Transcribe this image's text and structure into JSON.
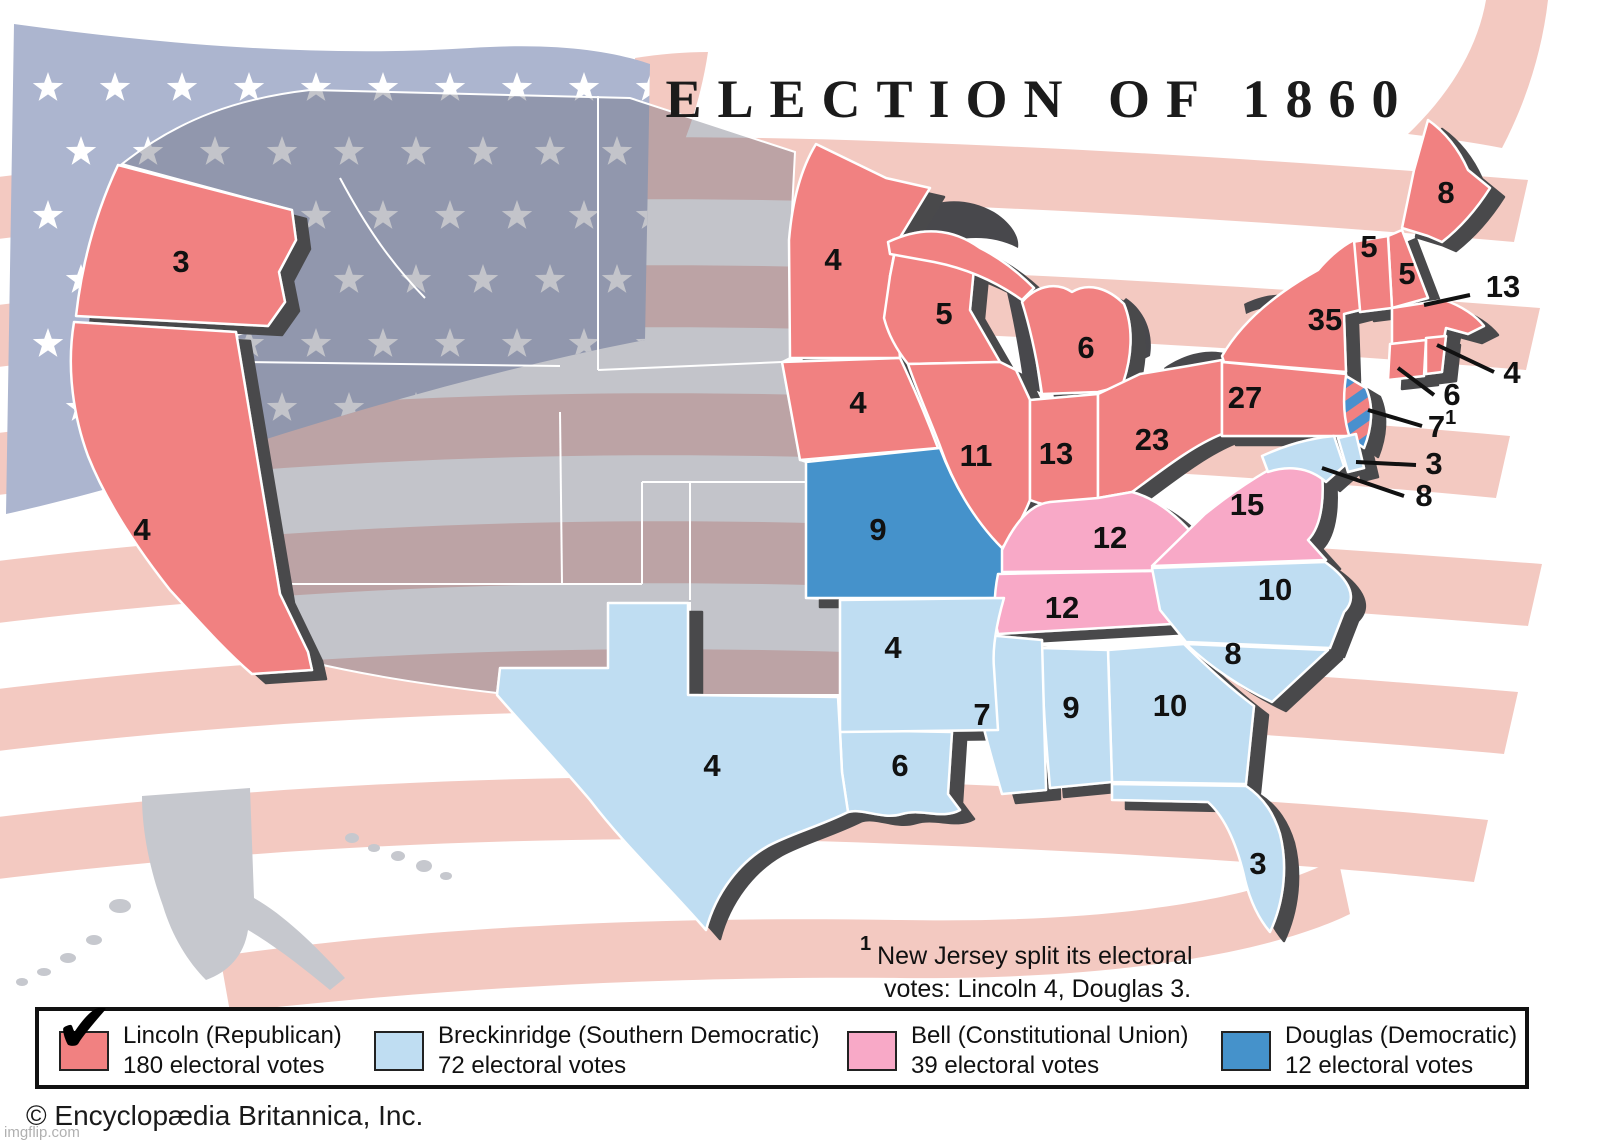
{
  "title": "ELECTION OF 1860",
  "footnote": {
    "marker": "1",
    "line1": "New Jersey split its electoral",
    "line2": "votes: Lincoln 4, Douglas 3."
  },
  "copyright": "© Encyclopædia Britannica, Inc.",
  "watermark": "imgflip.com",
  "colors": {
    "lincoln": "#F18181",
    "breckinridge": "#BFDDF2",
    "bell": "#F8A9C7",
    "douglas": "#4592CB",
    "split_stripe_red": "#F18181",
    "split_stripe_blue": "#4A90CE",
    "flag_stripe": "#F3C9C1",
    "flag_canton": "#ACB5CF",
    "flag_star": "#FFFFFF",
    "territory_overlay": "rgba(105,108,122,0.40)",
    "coast_shadow": "#48484C",
    "alaska_gray": "#C6C8CE",
    "state_border": "#FFFFFF"
  },
  "legend": [
    {
      "candidate": "Lincoln (Republican)",
      "votes": "180 electoral votes",
      "color": "#F18181",
      "checked": true
    },
    {
      "candidate": "Breckinridge (Southern Democratic)",
      "votes": "72 electoral votes",
      "color": "#BFDDF2",
      "checked": false
    },
    {
      "candidate": "Bell (Constitutional Union)",
      "votes": "39 electoral votes",
      "color": "#F8A9C7",
      "checked": false
    },
    {
      "candidate": "Douglas (Democratic)",
      "votes": "12 electoral votes",
      "color": "#4592CB",
      "checked": false
    }
  ],
  "states": [
    {
      "id": "OR",
      "name": "Oregon",
      "party": "lincoln",
      "votes": "3"
    },
    {
      "id": "CA",
      "name": "California",
      "party": "lincoln",
      "votes": "4"
    },
    {
      "id": "MN",
      "name": "Minnesota",
      "party": "lincoln",
      "votes": "4"
    },
    {
      "id": "WI",
      "name": "Wisconsin",
      "party": "lincoln",
      "votes": "5"
    },
    {
      "id": "MI",
      "name": "Michigan",
      "party": "lincoln",
      "votes": "6"
    },
    {
      "id": "IA",
      "name": "Iowa",
      "party": "lincoln",
      "votes": "4"
    },
    {
      "id": "IL",
      "name": "Illinois",
      "party": "lincoln",
      "votes": "11"
    },
    {
      "id": "IN",
      "name": "Indiana",
      "party": "lincoln",
      "votes": "13"
    },
    {
      "id": "OH",
      "name": "Ohio",
      "party": "lincoln",
      "votes": "23"
    },
    {
      "id": "ME",
      "name": "Maine",
      "party": "lincoln",
      "votes": "8"
    },
    {
      "id": "NH",
      "name": "New Hampshire",
      "party": "lincoln",
      "votes": "5"
    },
    {
      "id": "VT",
      "name": "Vermont",
      "party": "lincoln",
      "votes": "5"
    },
    {
      "id": "NY",
      "name": "New York",
      "party": "lincoln",
      "votes": "35"
    },
    {
      "id": "PA",
      "name": "Pennsylvania",
      "party": "lincoln",
      "votes": "27"
    },
    {
      "id": "MA",
      "name": "Massachusetts",
      "party": "lincoln",
      "votes": "13"
    },
    {
      "id": "RI",
      "name": "Rhode Island",
      "party": "lincoln",
      "votes": "4"
    },
    {
      "id": "CT",
      "name": "Connecticut",
      "party": "lincoln",
      "votes": "6"
    },
    {
      "id": "NJ",
      "name": "New Jersey",
      "party": "split",
      "votes": "7",
      "votes_sup": "1"
    },
    {
      "id": "MO",
      "name": "Missouri",
      "party": "douglas",
      "votes": "9"
    },
    {
      "id": "KY",
      "name": "Kentucky",
      "party": "bell",
      "votes": "12"
    },
    {
      "id": "TN",
      "name": "Tennessee",
      "party": "bell",
      "votes": "12"
    },
    {
      "id": "VA",
      "name": "Virginia",
      "party": "bell",
      "votes": "15"
    },
    {
      "id": "MD",
      "name": "Maryland",
      "party": "breckinridge",
      "votes": "8"
    },
    {
      "id": "DE",
      "name": "Delaware",
      "party": "breckinridge",
      "votes": "3"
    },
    {
      "id": "NC",
      "name": "North Carolina",
      "party": "breckinridge",
      "votes": "10"
    },
    {
      "id": "SC",
      "name": "South Carolina",
      "party": "breckinridge",
      "votes": "8"
    },
    {
      "id": "GA",
      "name": "Georgia",
      "party": "breckinridge",
      "votes": "10"
    },
    {
      "id": "AL",
      "name": "Alabama",
      "party": "breckinridge",
      "votes": "9"
    },
    {
      "id": "MS",
      "name": "Mississippi",
      "party": "breckinridge",
      "votes": "7"
    },
    {
      "id": "FL",
      "name": "Florida",
      "party": "breckinridge",
      "votes": "3"
    },
    {
      "id": "LA",
      "name": "Louisiana",
      "party": "breckinridge",
      "votes": "6"
    },
    {
      "id": "AR",
      "name": "Arkansas",
      "party": "breckinridge",
      "votes": "4"
    },
    {
      "id": "TX",
      "name": "Texas",
      "party": "breckinridge",
      "votes": "4"
    }
  ]
}
